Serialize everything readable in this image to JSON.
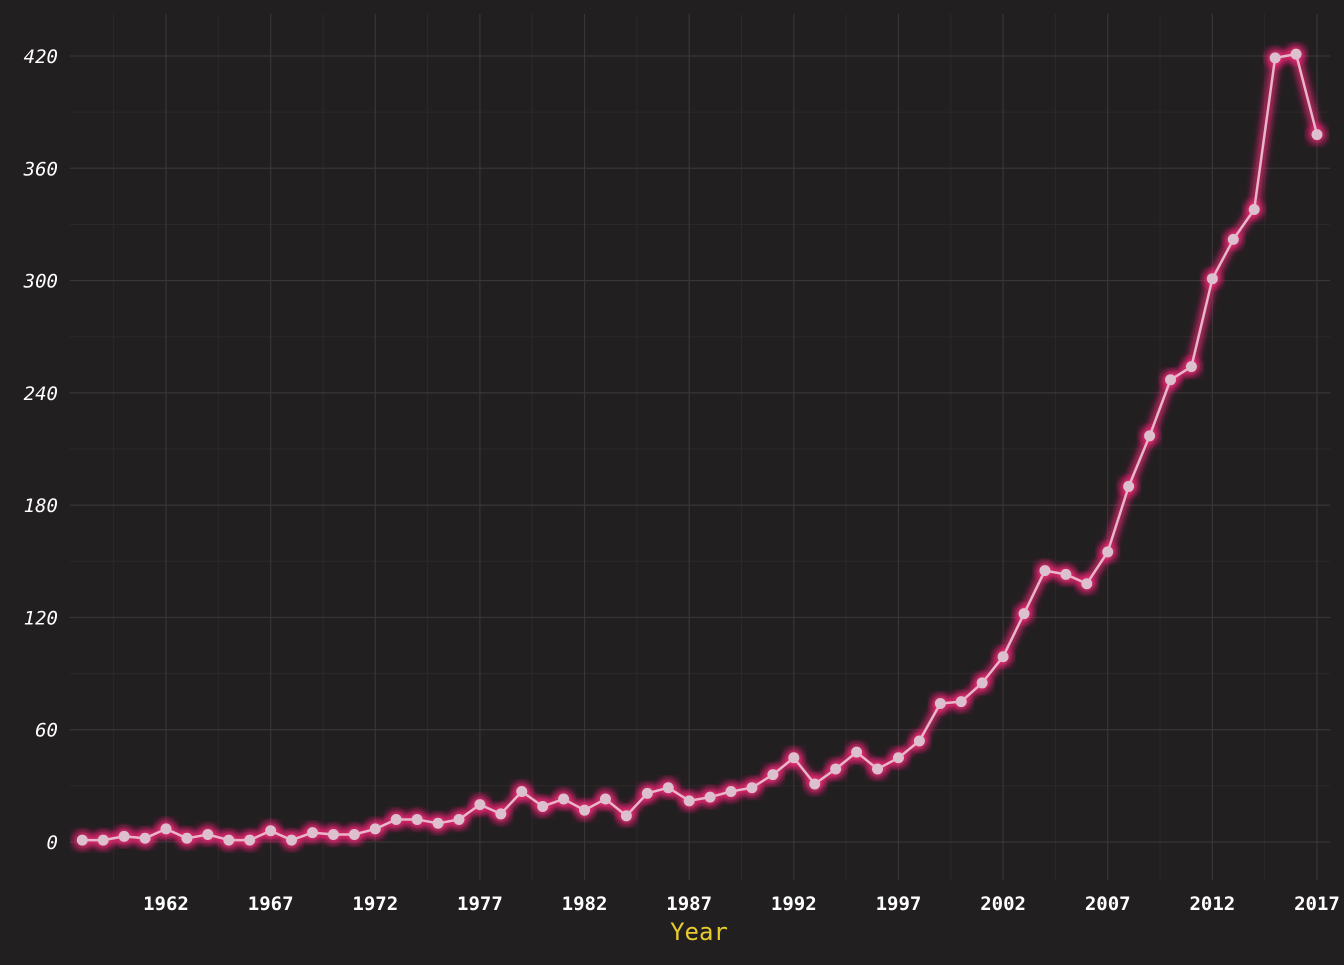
{
  "chart_data": {
    "type": "line",
    "title": "",
    "xlabel": "Year",
    "ylabel": "",
    "xlim": [
      1957.3,
      1817.5
    ],
    "ylim": [
      -18,
      443
    ],
    "xticks": [
      1962,
      1967,
      1972,
      1977,
      1982,
      1987,
      1992,
      1997,
      2002,
      2007,
      2012,
      2017
    ],
    "yticks": [
      0,
      60,
      120,
      180,
      240,
      300,
      360,
      420
    ],
    "grid": true,
    "legend": "none",
    "colors": {
      "background": "#221f21",
      "grid": "#3a3537",
      "line": "#e8b6c8",
      "point": "#dcc0cd",
      "glow": "#ff2e7e",
      "tick_text": "#ffffff",
      "xlabel_text": "#e8cb2c"
    },
    "series": [
      {
        "x": [
          1958,
          1959,
          1960,
          1961,
          1962,
          1963,
          1964,
          1965,
          1966,
          1967,
          1968,
          1969,
          1970,
          1971,
          1972,
          1973,
          1974,
          1975,
          1976,
          1977,
          1978,
          1979,
          1980,
          1981,
          1982,
          1983,
          1984,
          1985,
          1986,
          1987,
          1988,
          1989,
          1990,
          1991,
          1992,
          1993,
          1994,
          1995,
          1996,
          1997,
          1998,
          1999,
          2000,
          2001,
          2002,
          2003,
          2004,
          2005,
          2006,
          2007,
          2008,
          2009,
          2010,
          2011,
          2012,
          2013,
          2014,
          2015,
          2016,
          2017
        ],
        "values": [
          1,
          1,
          3,
          2,
          7,
          2,
          4,
          1,
          1,
          6,
          1,
          5,
          4,
          4,
          7,
          12,
          12,
          10,
          12,
          20,
          15,
          27,
          19,
          23,
          17,
          23,
          14,
          26,
          29,
          22,
          24,
          27,
          29,
          36,
          45,
          31,
          39,
          48,
          39,
          45,
          54,
          74,
          75,
          85,
          99,
          122,
          145,
          143,
          138,
          155,
          190,
          217,
          247,
          254,
          301,
          322,
          338,
          419,
          421,
          378
        ]
      }
    ]
  }
}
